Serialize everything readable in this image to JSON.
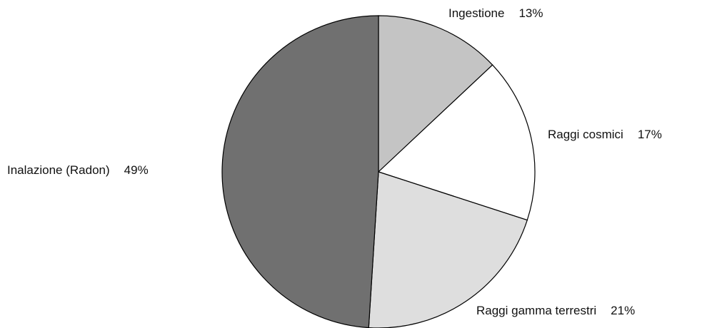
{
  "chart_data": {
    "type": "pie",
    "categories": [
      "Ingestione",
      "Raggi cosmici",
      "Raggi gamma terrestri",
      "Inalazione (Radon)"
    ],
    "values": [
      13,
      17,
      21,
      49
    ],
    "value_labels": [
      "13%",
      "17%",
      "21%",
      "49%"
    ],
    "colors": [
      "#c4c4c4",
      "#ffffff",
      "#dedede",
      "#707070"
    ]
  }
}
